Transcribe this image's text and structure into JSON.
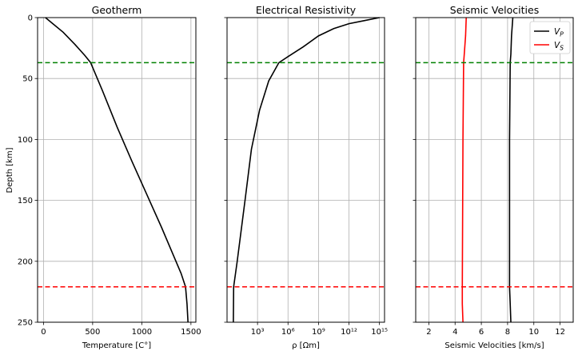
{
  "figure": {
    "ylabel": "Depth [km]",
    "yticks": [
      0,
      50,
      100,
      150,
      200,
      250
    ],
    "ylim": [
      250,
      0
    ],
    "hlines": [
      {
        "y": 37,
        "color": "#008000"
      },
      {
        "y": 221,
        "color": "#ff0000"
      }
    ]
  },
  "chart_data": [
    {
      "type": "line",
      "title": "Geotherm",
      "xlabel": "Temperature [C°]",
      "xlim": [
        -60,
        1550
      ],
      "xticks": [
        0,
        500,
        1000,
        1500
      ],
      "xticklabels": [
        "0",
        "500",
        "1000",
        "1500"
      ],
      "ylim": [
        250,
        0
      ],
      "grid": true,
      "series": [
        {
          "color": "#000000",
          "x": [
            20,
            80,
            200,
            320,
            420,
            480
          ],
          "y": [
            0,
            4,
            12,
            22,
            31,
            37
          ]
        },
        {
          "color": "#000000",
          "x": [
            480,
            600,
            750,
            900,
            1050,
            1200,
            1300,
            1400,
            1445
          ],
          "y": [
            37,
            60,
            90,
            118,
            145,
            172,
            191,
            210,
            221
          ]
        },
        {
          "color": "#000000",
          "x": [
            1445,
            1460,
            1470
          ],
          "y": [
            221,
            235,
            250
          ]
        }
      ]
    },
    {
      "type": "line",
      "title": "Electrical Resistivity",
      "xlabel": "ρ [Ωm]",
      "xscale": "log",
      "xlim_log10": [
        0.0,
        15.5
      ],
      "xticks_log10": [
        3,
        6,
        9,
        12,
        15
      ],
      "xticklabels": [
        "10³",
        "10⁶",
        "10⁹",
        "10¹²",
        "10¹⁵"
      ],
      "ylim": [
        250,
        0
      ],
      "grid": true,
      "series": [
        {
          "color": "#000000",
          "log10_x": [
            15.0,
            13.5,
            12.0,
            10.5,
            9.0,
            7.5,
            6.0,
            5.1,
            4.1,
            3.2,
            2.4,
            1.8,
            1.0,
            0.65,
            0.62
          ],
          "y": [
            0,
            2.5,
            5,
            9,
            15,
            24,
            32,
            37,
            52,
            76,
            108,
            148,
            200,
            221,
            250
          ]
        }
      ]
    },
    {
      "type": "line",
      "title": "Seismic Velocities",
      "xlabel": "Seismic Velocities [km/s]",
      "xlim": [
        1.0,
        13.0
      ],
      "xticks": [
        2,
        4,
        6,
        8,
        10,
        12
      ],
      "xticklabels": [
        "2",
        "4",
        "6",
        "8",
        "10",
        "12"
      ],
      "ylim": [
        250,
        0
      ],
      "grid": true,
      "legend": "top-right",
      "series": [
        {
          "name": "V_P",
          "color": "#000000",
          "x": [
            8.4,
            8.3,
            8.25,
            8.2,
            8.15,
            8.15,
            8.2,
            8.25
          ],
          "y": [
            0,
            15,
            30,
            37,
            100,
            221,
            235,
            250
          ]
        },
        {
          "name": "V_S",
          "color": "#ff0000",
          "x": [
            4.85,
            4.8,
            4.7,
            4.65,
            4.6,
            4.55,
            4.55,
            4.6
          ],
          "y": [
            0,
            15,
            30,
            37,
            100,
            221,
            235,
            250
          ]
        }
      ]
    }
  ]
}
